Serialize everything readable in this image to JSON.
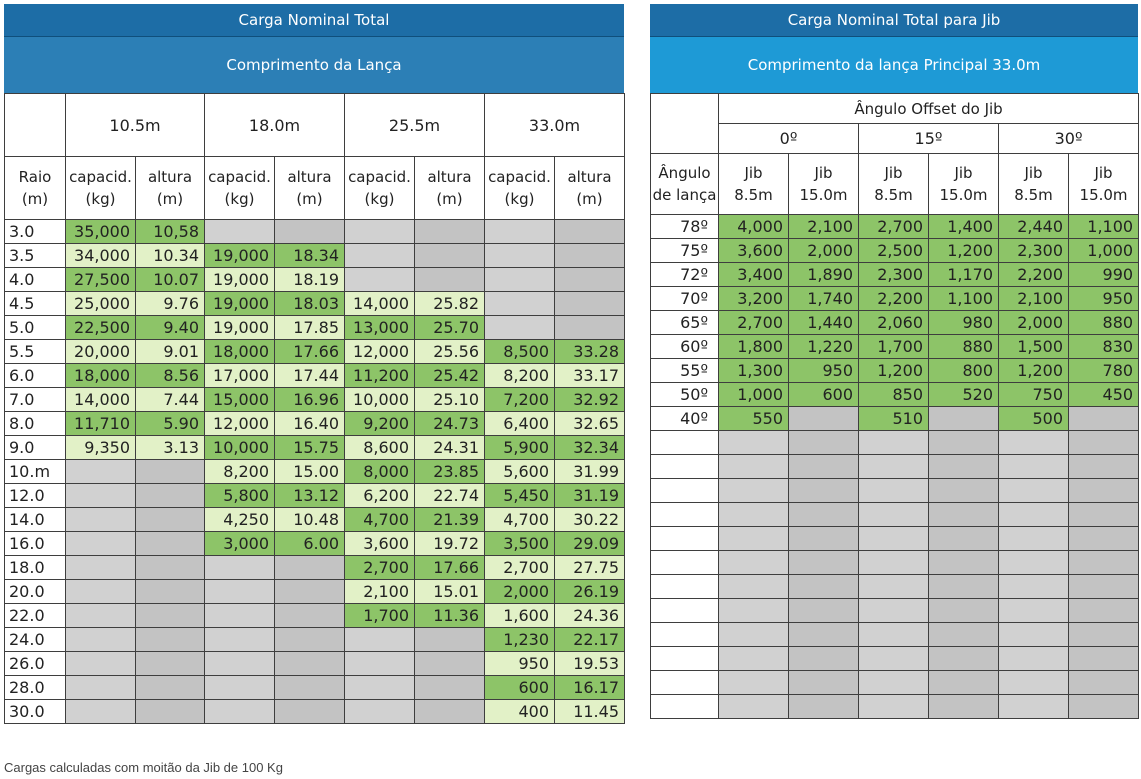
{
  "left": {
    "title": "Carga Nominal Total",
    "subtitle": "Comprimento da Lança",
    "lengths": [
      "10.5m",
      "18.0m",
      "25.5m",
      "33.0m"
    ],
    "raio_header": [
      "Raio",
      "(m)"
    ],
    "cap_header": [
      "capacid.",
      "(kg)"
    ],
    "alt_header": [
      "altura",
      "(m)"
    ],
    "rows": [
      {
        "r": "3.0",
        "cells": [
          "35,000",
          "10,58",
          "",
          "",
          "",
          "",
          "",
          ""
        ]
      },
      {
        "r": "3.5",
        "cells": [
          "34,000",
          "10.34",
          "19,000",
          "18.34",
          "",
          "",
          "",
          ""
        ]
      },
      {
        "r": "4.0",
        "cells": [
          "27,500",
          "10.07",
          "19,000",
          "18.19",
          "",
          "",
          "",
          ""
        ]
      },
      {
        "r": "4.5",
        "cells": [
          "25,000",
          "9.76",
          "19,000",
          "18.03",
          "14,000",
          "25.82",
          "",
          ""
        ]
      },
      {
        "r": "5.0",
        "cells": [
          "22,500",
          "9.40",
          "19,000",
          "17.85",
          "13,000",
          "25.70",
          "",
          ""
        ]
      },
      {
        "r": "5.5",
        "cells": [
          "20,000",
          "9.01",
          "18,000",
          "17.66",
          "12,000",
          "25.56",
          "8,500",
          "33.28"
        ]
      },
      {
        "r": "6.0",
        "cells": [
          "18,000",
          "8.56",
          "17,000",
          "17.44",
          "11,200",
          "25.42",
          "8,200",
          "33.17"
        ]
      },
      {
        "r": "7.0",
        "cells": [
          "14,000",
          "7.44",
          "15,000",
          "16.96",
          "10,000",
          "25.10",
          "7,200",
          "32.92"
        ]
      },
      {
        "r": "8.0",
        "cells": [
          "11,710",
          "5.90",
          "12,000",
          "16.40",
          "9,200",
          "24.73",
          "6,400",
          "32.65"
        ]
      },
      {
        "r": "9.0",
        "cells": [
          "9,350",
          "3.13",
          "10,000",
          "15.75",
          "8,600",
          "24.31",
          "5,900",
          "32.34"
        ]
      },
      {
        "r": "10.m",
        "cells": [
          "",
          "",
          "8,200",
          "15.00",
          "8,000",
          "23.85",
          "5,600",
          "31.99"
        ]
      },
      {
        "r": "12.0",
        "cells": [
          "",
          "",
          "5,800",
          "13.12",
          "6,200",
          "22.74",
          "5,450",
          "31.19"
        ]
      },
      {
        "r": "14.0",
        "cells": [
          "",
          "",
          "4,250",
          "10.48",
          "4,700",
          "21.39",
          "4,700",
          "30.22"
        ]
      },
      {
        "r": "16.0",
        "cells": [
          "",
          "",
          "3,000",
          "6.00",
          "3,600",
          "19.72",
          "3,500",
          "29.09"
        ]
      },
      {
        "r": "18.0",
        "cells": [
          "",
          "",
          "",
          "",
          "2,700",
          "17.66",
          "2,700",
          "27.75"
        ]
      },
      {
        "r": "20.0",
        "cells": [
          "",
          "",
          "",
          "",
          "2,100",
          "15.01",
          "2,000",
          "26.19"
        ]
      },
      {
        "r": "22.0",
        "cells": [
          "",
          "",
          "",
          "",
          "1,700",
          "11.36",
          "1,600",
          "24.36"
        ]
      },
      {
        "r": "24.0",
        "cells": [
          "",
          "",
          "",
          "",
          "",
          "",
          "1,230",
          "22.17"
        ]
      },
      {
        "r": "26.0",
        "cells": [
          "",
          "",
          "",
          "",
          "",
          "",
          "950",
          "19.53"
        ]
      },
      {
        "r": "28.0",
        "cells": [
          "",
          "",
          "",
          "",
          "",
          "",
          "600",
          "16.17"
        ]
      },
      {
        "r": "30.0",
        "cells": [
          "",
          "",
          "",
          "",
          "",
          "",
          "400",
          "11.45"
        ]
      }
    ]
  },
  "right": {
    "title": "Carga Nominal Total para Jib",
    "subtitle": "Comprimento da lança Principal 33.0m",
    "offset_header": "Ângulo Offset do Jib",
    "offsets": [
      "0º",
      "15º",
      "30º"
    ],
    "angle_header": [
      "Ângulo",
      "de lança"
    ],
    "jib_headers": [
      [
        "Jib",
        "8.5m"
      ],
      [
        "Jib",
        "15.0m"
      ],
      [
        "Jib",
        "8.5m"
      ],
      [
        "Jib",
        "15.0m"
      ],
      [
        "Jib",
        "8.5m"
      ],
      [
        "Jib",
        "15.0m"
      ]
    ],
    "rows": [
      {
        "a": "78º",
        "cells": [
          "4,000",
          "2,100",
          "2,700",
          "1,400",
          "2,440",
          "1,100"
        ]
      },
      {
        "a": "75º",
        "cells": [
          "3,600",
          "2,000",
          "2,500",
          "1,200",
          "2,300",
          "1,000"
        ]
      },
      {
        "a": "72º",
        "cells": [
          "3,400",
          "1,890",
          "2,300",
          "1,170",
          "2,200",
          "990"
        ]
      },
      {
        "a": "70º",
        "cells": [
          "3,200",
          "1,740",
          "2,200",
          "1,100",
          "2,100",
          "950"
        ]
      },
      {
        "a": "65º",
        "cells": [
          "2,700",
          "1,440",
          "2,060",
          "980",
          "2,000",
          "880"
        ]
      },
      {
        "a": "60º",
        "cells": [
          "1,800",
          "1,220",
          "1,700",
          "880",
          "1,500",
          "830"
        ]
      },
      {
        "a": "55º",
        "cells": [
          "1,300",
          "950",
          "1,200",
          "800",
          "1,200",
          "780"
        ]
      },
      {
        "a": "50º",
        "cells": [
          "1,000",
          "600",
          "850",
          "520",
          "750",
          "450"
        ]
      },
      {
        "a": "40º",
        "cells": [
          "550",
          "",
          "510",
          "",
          "500",
          ""
        ]
      },
      {
        "a": "",
        "cells": [
          "",
          "",
          "",
          "",
          "",
          ""
        ]
      },
      {
        "a": "",
        "cells": [
          "",
          "",
          "",
          "",
          "",
          ""
        ]
      },
      {
        "a": "",
        "cells": [
          "",
          "",
          "",
          "",
          "",
          ""
        ]
      },
      {
        "a": "",
        "cells": [
          "",
          "",
          "",
          "",
          "",
          ""
        ]
      },
      {
        "a": "",
        "cells": [
          "",
          "",
          "",
          "",
          "",
          ""
        ]
      },
      {
        "a": "",
        "cells": [
          "",
          "",
          "",
          "",
          "",
          ""
        ]
      },
      {
        "a": "",
        "cells": [
          "",
          "",
          "",
          "",
          "",
          ""
        ]
      },
      {
        "a": "",
        "cells": [
          "",
          "",
          "",
          "",
          "",
          ""
        ]
      },
      {
        "a": "",
        "cells": [
          "",
          "",
          "",
          "",
          "",
          ""
        ]
      },
      {
        "a": "",
        "cells": [
          "",
          "",
          "",
          "",
          "",
          ""
        ]
      },
      {
        "a": "",
        "cells": [
          "",
          "",
          "",
          "",
          "",
          ""
        ]
      },
      {
        "a": "",
        "cells": [
          "",
          "",
          "",
          "",
          "",
          ""
        ]
      }
    ]
  },
  "footnote": "Cargas calculadas com moitão da Jib de 100 Kg"
}
